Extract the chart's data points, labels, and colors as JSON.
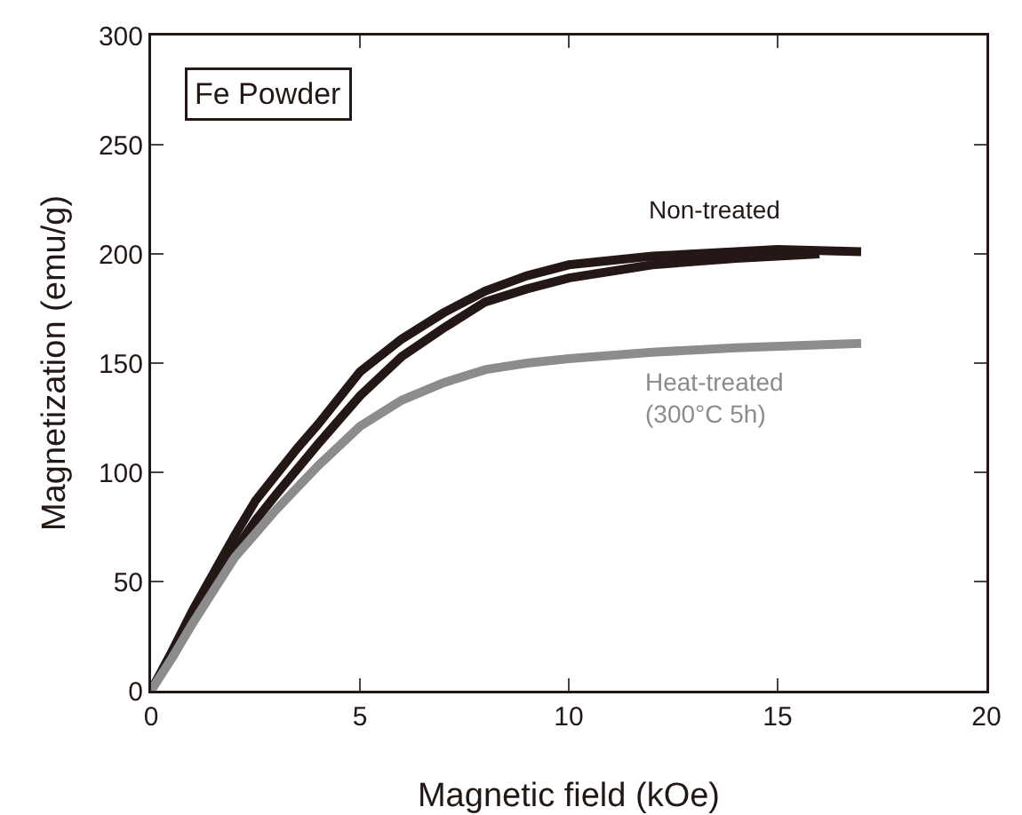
{
  "chart_data": {
    "type": "line",
    "title": "Fe Powder",
    "xlabel": "Magnetic field (kOe)",
    "ylabel": "Magnetization (emu/g)",
    "xlim": [
      0,
      20
    ],
    "xticks": [
      0,
      5,
      10,
      15,
      20
    ],
    "ylim": [
      0,
      300
    ],
    "yticks": [
      0,
      50,
      100,
      150,
      200,
      250,
      300
    ],
    "grid": false,
    "legend": false,
    "marker": "none",
    "line_style": "solid",
    "series": [
      {
        "name": "Non-treated",
        "color": "#231815",
        "x": [
          0,
          0.5,
          1,
          1.5,
          2,
          2.5,
          3,
          3.5,
          4,
          4.5,
          5,
          6,
          7,
          8,
          9,
          10,
          12,
          14,
          15,
          17
        ],
        "values": [
          0,
          18,
          37,
          54,
          71,
          87,
          99,
          111,
          122,
          134,
          146,
          161,
          173,
          183,
          190,
          195,
          199,
          201,
          202,
          201
        ]
      },
      {
        "color": "#231815",
        "x": [
          0.5,
          1,
          2,
          2.5,
          3,
          4,
          5,
          6,
          7,
          8,
          9,
          10,
          12,
          14,
          16
        ],
        "values": [
          15,
          33,
          64,
          78,
          90,
          113,
          135,
          153,
          166,
          178,
          184,
          189,
          195,
          198,
          200
        ]
      },
      {
        "name": "Heat-treated\n(300°C 5h)",
        "color": "#8c8c8c",
        "x": [
          0,
          0.5,
          1,
          2,
          2.5,
          3,
          4,
          5,
          6,
          7,
          8,
          9,
          10,
          12,
          14,
          17
        ],
        "values": [
          0,
          15,
          31,
          61,
          72,
          83,
          103,
          121,
          133,
          141,
          147,
          150,
          152,
          155,
          157,
          159
        ]
      }
    ]
  }
}
